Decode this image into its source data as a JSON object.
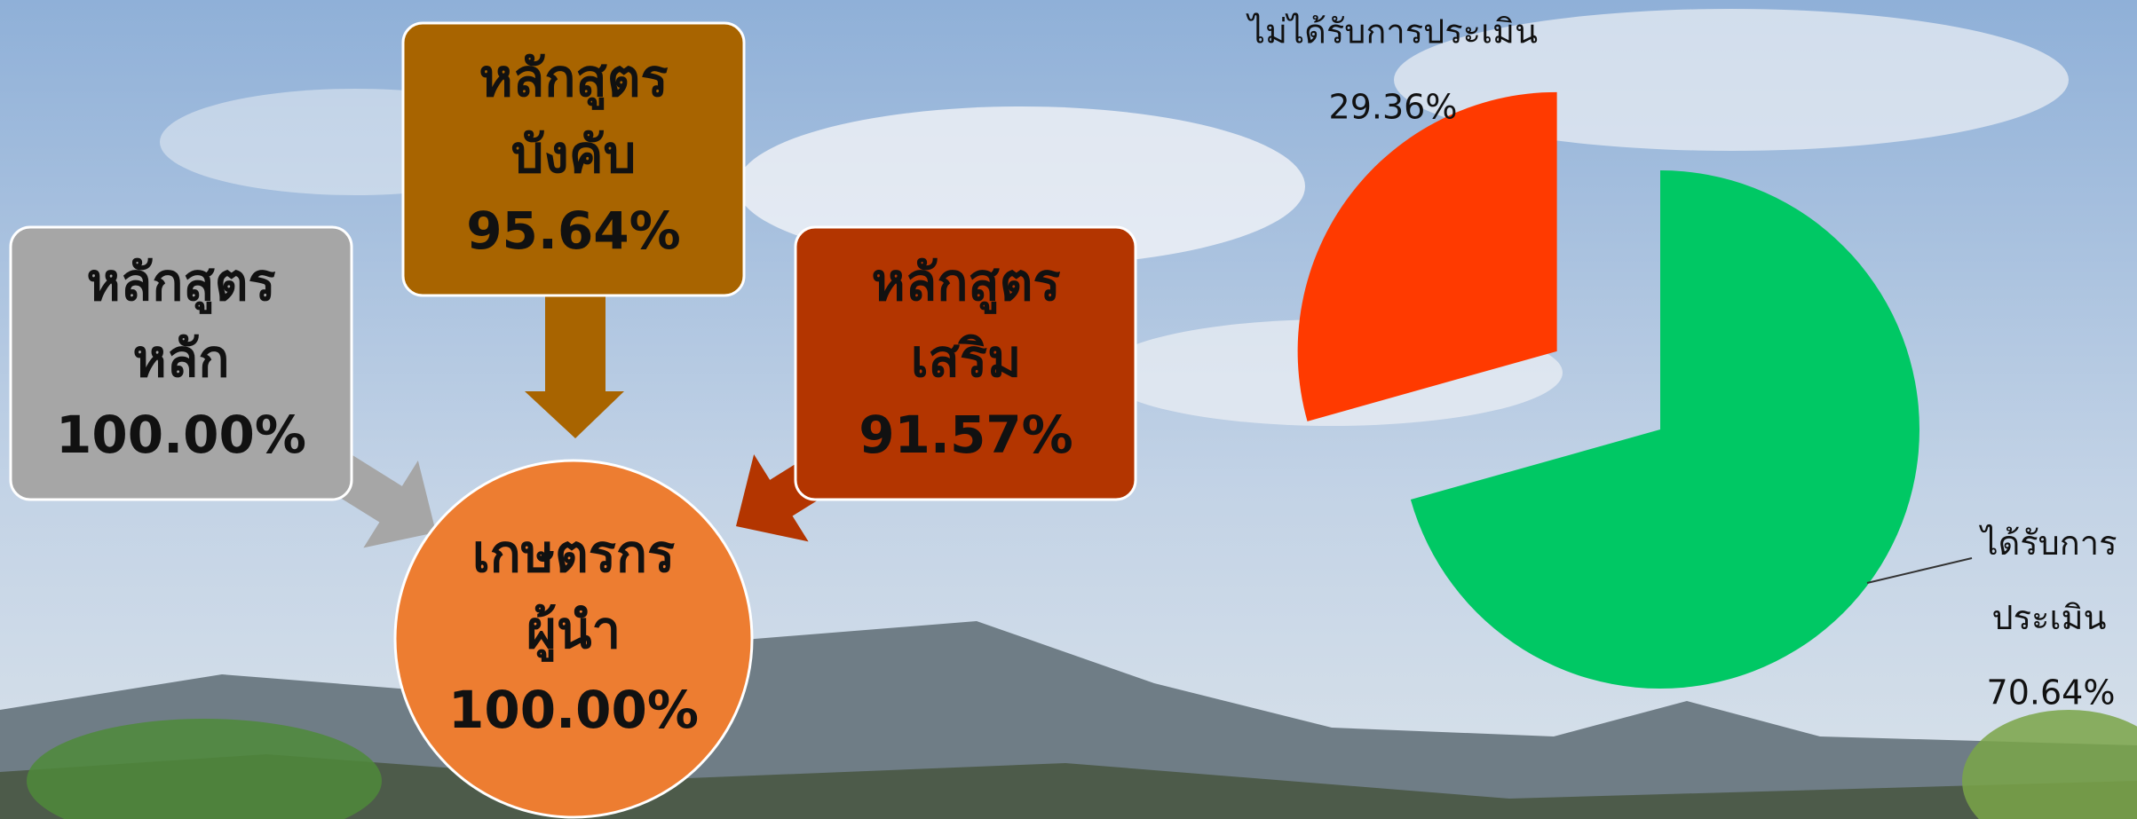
{
  "boxes": [
    {
      "lines": [
        "หลักสูตร",
        "หลัก"
      ],
      "percent": "100.00%"
    },
    {
      "lines": [
        "หลักสูตร",
        "บังคับ"
      ],
      "percent": "95.64%"
    },
    {
      "lines": [
        "หลักสูตร",
        "เสริม"
      ],
      "percent": "91.57%"
    }
  ],
  "center": {
    "lines": [
      "เกษตรกร",
      "ผู้นำ"
    ],
    "percent": "100.00%"
  },
  "chart_data": {
    "type": "pie",
    "categories": [
      "ได้รับการประเมิน",
      "ไม่ได้รับการประเมิน"
    ],
    "values": [
      70.64,
      29.36
    ],
    "value_labels": [
      "70.64%",
      "29.36%"
    ],
    "colors": [
      "#00c864",
      "#ff3a00"
    ],
    "exploded": [
      false,
      true
    ]
  }
}
